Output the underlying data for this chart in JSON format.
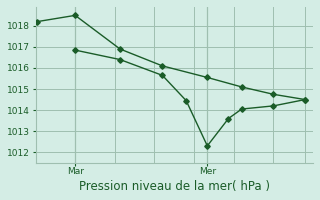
{
  "background_color": "#d4ede5",
  "grid_color": "#9fbfb0",
  "line_color": "#1a5c28",
  "xlabel": "Pression niveau de la mer( hPa )",
  "ylim": [
    1011.5,
    1018.9
  ],
  "yticks": [
    1012,
    1013,
    1014,
    1015,
    1016,
    1017,
    1018
  ],
  "xlim": [
    0,
    10.5
  ],
  "vline_mar": 1.5,
  "vline_mer": 6.5,
  "label_mar": "Mar",
  "label_mer": "Mer",
  "line1_x": [
    0.05,
    1.5,
    3.2,
    4.8,
    6.5,
    7.8,
    9.0,
    10.2
  ],
  "line1_y": [
    1018.2,
    1018.5,
    1016.9,
    1016.1,
    1015.55,
    1015.1,
    1014.75,
    1014.5
  ],
  "line2_x": [
    1.5,
    3.2,
    4.8,
    5.7,
    6.5,
    7.3,
    7.8,
    9.0,
    10.2
  ],
  "line2_y": [
    1016.85,
    1016.4,
    1015.65,
    1014.45,
    1012.3,
    1013.6,
    1014.05,
    1014.2,
    1014.5
  ],
  "marker_size": 2.8,
  "linewidth": 1.0,
  "tick_fontsize": 6.5,
  "label_fontsize": 8.5
}
